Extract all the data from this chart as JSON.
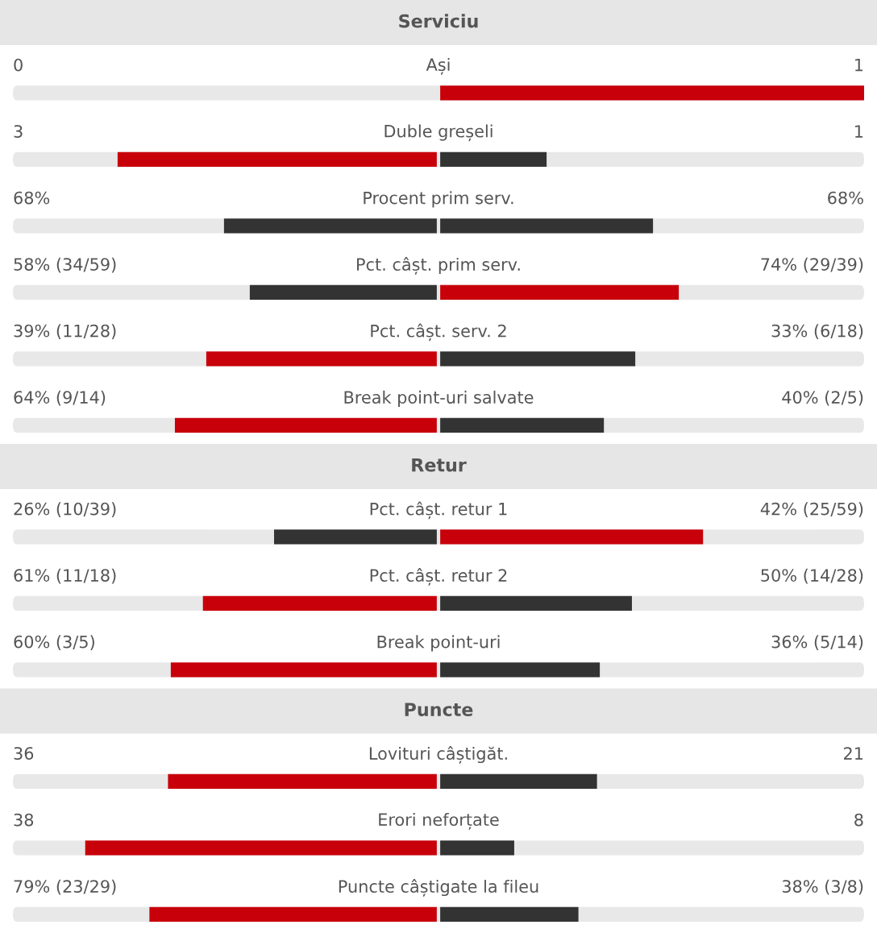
{
  "chart_data": [
    {
      "type": "other",
      "title": "Serviciu",
      "categories": [
        "Ași",
        "Duble greșeli",
        "Procent prim serv.",
        "Pct. câșt. prim serv.",
        "Pct. câșt. serv. 2",
        "Break point-uri salvate"
      ],
      "series": [
        {
          "values": [
            0,
            3,
            68,
            58,
            39,
            64
          ],
          "colors": [
            "#333333",
            "#c8000a",
            "#333333",
            "#333333",
            "#c8000a",
            "#c8000a"
          ],
          "value_labels": [
            "0",
            "3",
            "68%",
            "58% (34/59)",
            "39% (11/28)",
            "64% (9/14)"
          ]
        },
        {
          "values": [
            1,
            1,
            68,
            74,
            33,
            40
          ],
          "colors": [
            "#c8000a",
            "#333333",
            "#333333",
            "#c8000a",
            "#333333",
            "#333333"
          ],
          "value_labels": [
            "1",
            "1",
            "68%",
            "74% (29/39)",
            "33% (6/18)",
            "40% (2/5)"
          ]
        }
      ]
    },
    {
      "type": "other",
      "title": "Retur",
      "categories": [
        "Pct. câșt. retur 1",
        "Pct. câșt. retur 2",
        "Break point-uri"
      ],
      "series": [
        {
          "values": [
            26,
            61,
            60
          ],
          "colors": [
            "#333333",
            "#c8000a",
            "#c8000a"
          ],
          "value_labels": [
            "26% (10/39)",
            "61% (11/18)",
            "60% (3/5)"
          ]
        },
        {
          "values": [
            42,
            50,
            36
          ],
          "colors": [
            "#c8000a",
            "#333333",
            "#333333"
          ],
          "value_labels": [
            "42% (25/59)",
            "50% (14/28)",
            "36% (5/14)"
          ]
        }
      ]
    },
    {
      "type": "other",
      "title": "Puncte",
      "categories": [
        "Lovituri câștigăt.",
        "Erori neforțate",
        "Puncte câștigate la fileu"
      ],
      "series": [
        {
          "values": [
            36,
            38,
            79
          ],
          "colors": [
            "#c8000a",
            "#c8000a",
            "#c8000a"
          ],
          "value_labels": [
            "36",
            "38",
            "79% (23/29)"
          ]
        },
        {
          "values": [
            21,
            8,
            38
          ],
          "colors": [
            "#333333",
            "#333333",
            "#333333"
          ],
          "value_labels": [
            "21",
            "8",
            "38% (3/8)"
          ]
        }
      ]
    }
  ]
}
